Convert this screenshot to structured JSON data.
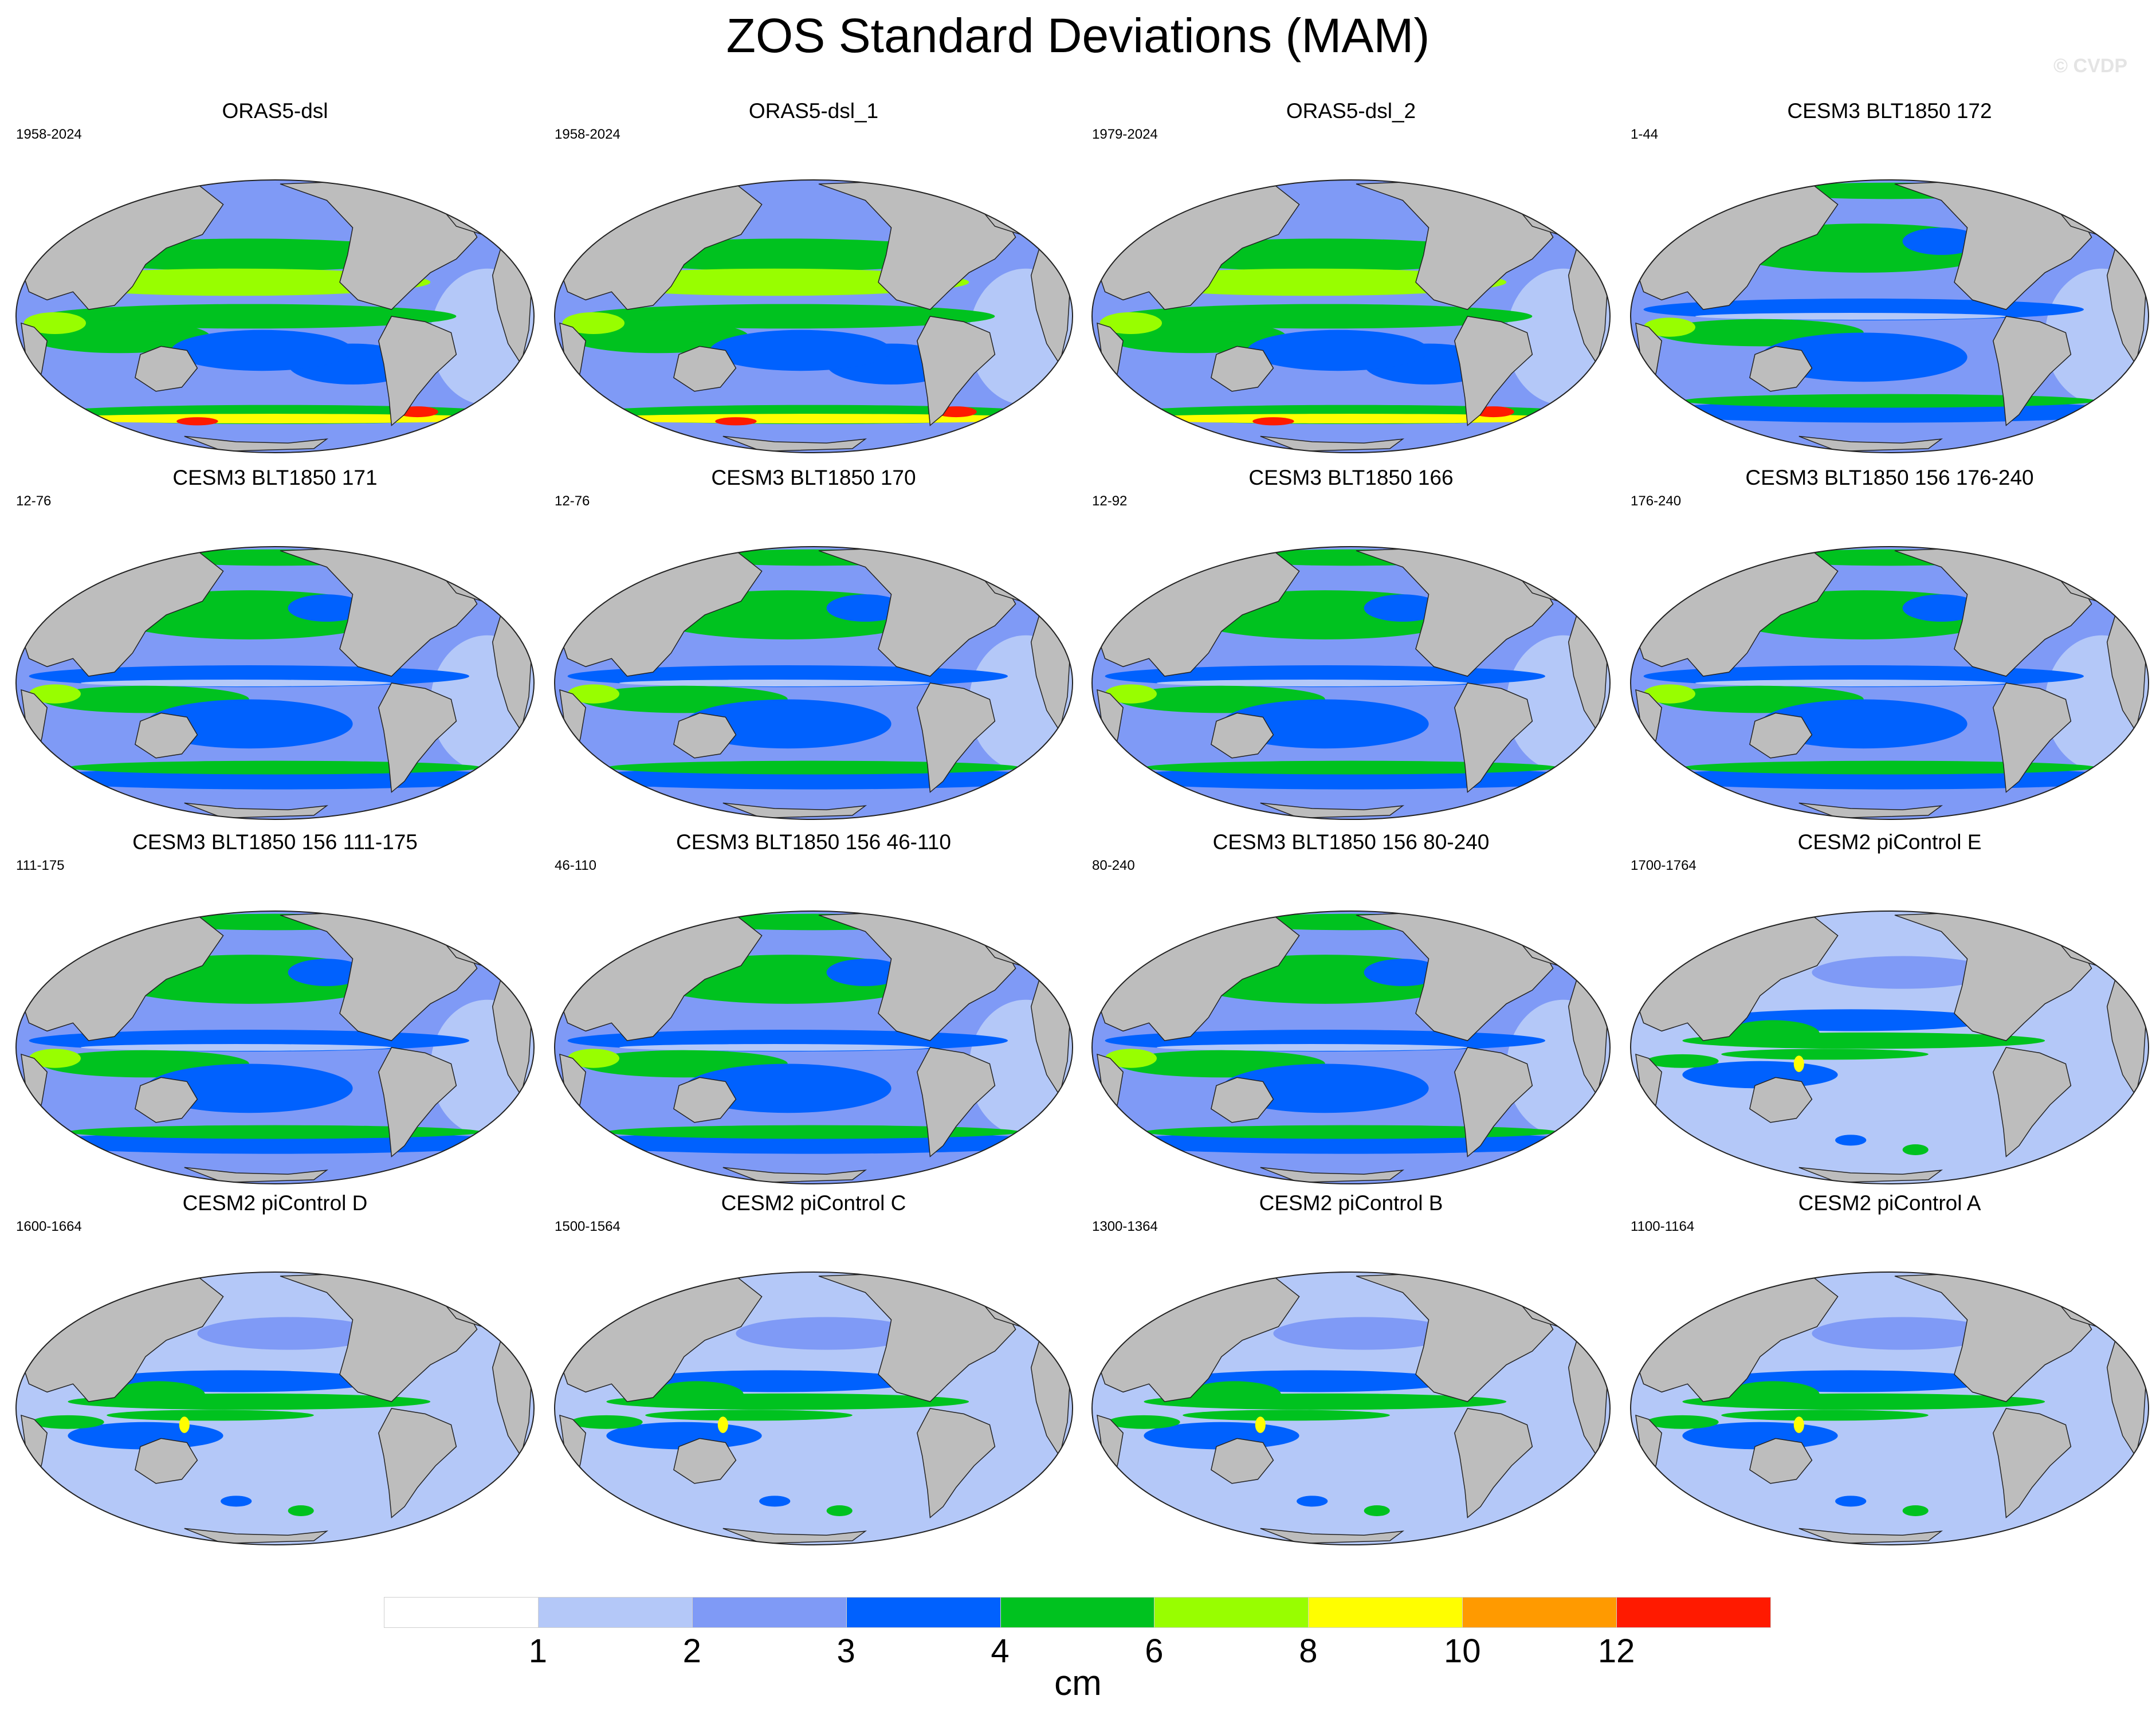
{
  "title": "ZOS Standard Deviations (MAM)",
  "watermark": "© CVDP",
  "panels": [
    {
      "title": "ORAS5-dsl",
      "years": "1958-2024",
      "style": "obs"
    },
    {
      "title": "ORAS5-dsl_1",
      "years": "1958-2024",
      "style": "obs"
    },
    {
      "title": "ORAS5-dsl_2",
      "years": "1979-2024",
      "style": "obs"
    },
    {
      "title": "CESM3 BLT1850 172",
      "years": "1-44",
      "style": "cesm3"
    },
    {
      "title": "CESM3 BLT1850 171",
      "years": "12-76",
      "style": "cesm3"
    },
    {
      "title": "CESM3 BLT1850 170",
      "years": "12-76",
      "style": "cesm3"
    },
    {
      "title": "CESM3 BLT1850 166",
      "years": "12-92",
      "style": "cesm3"
    },
    {
      "title": "CESM3 BLT1850 156 176-240",
      "years": "176-240",
      "style": "cesm3"
    },
    {
      "title": "CESM3 BLT1850 156 111-175",
      "years": "111-175",
      "style": "cesm3"
    },
    {
      "title": "CESM3 BLT1850 156 46-110",
      "years": "46-110",
      "style": "cesm3"
    },
    {
      "title": "CESM3 BLT1850 156 80-240",
      "years": "80-240",
      "style": "cesm3"
    },
    {
      "title": "CESM2 piControl E",
      "years": "1700-1764",
      "style": "cesm2"
    },
    {
      "title": "CESM2 piControl D",
      "years": "1600-1664",
      "style": "cesm2"
    },
    {
      "title": "CESM2 piControl C",
      "years": "1500-1564",
      "style": "cesm2"
    },
    {
      "title": "CESM2 piControl B",
      "years": "1300-1364",
      "style": "cesm2"
    },
    {
      "title": "CESM2 piControl A",
      "years": "1100-1164",
      "style": "cesm2"
    }
  ],
  "colorbar": {
    "unit": "cm",
    "tick_labels": [
      "1",
      "2",
      "3",
      "4",
      "6",
      "8",
      "10",
      "12"
    ],
    "colors": [
      "#ffffff",
      "#b4c8f8",
      "#7f9af6",
      "#0061fe",
      "#00c21f",
      "#98fe00",
      "#fffe00",
      "#ff9a00",
      "#ff1a00"
    ]
  },
  "map_colors": {
    "land": "#bdbdbd",
    "outline": "#222222"
  }
}
